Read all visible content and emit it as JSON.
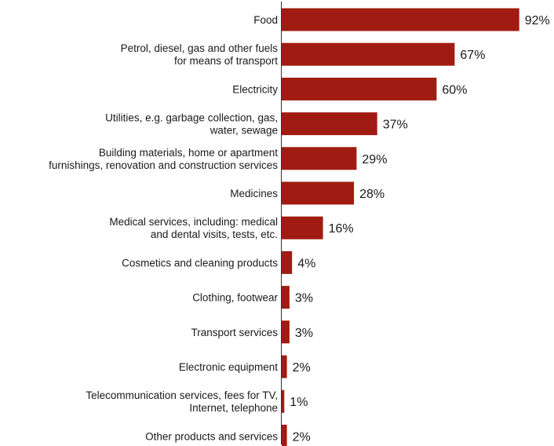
{
  "chart_data": {
    "type": "bar",
    "orientation": "horizontal",
    "categories": [
      "Food",
      "Petrol, diesel, gas and other fuels\nfor means of transport",
      "Electricity",
      "Utilities, e.g. garbage collection, gas,\nwater, sewage",
      "Building materials, home or apartment\nfurnishings, renovation and construction services",
      "Medicines",
      "Medical services, including: medical\nand dental visits, tests, etc.",
      "Cosmetics and cleaning products",
      "Clothing, footwear",
      "Transport services",
      "Electronic equipment",
      "Telecommunication services, fees for TV,\nInternet, telephone",
      "Other products and services"
    ],
    "values": [
      92,
      67,
      60,
      37,
      29,
      28,
      16,
      4,
      3,
      3,
      2,
      1,
      2
    ],
    "value_labels": [
      "92%",
      "67%",
      "60%",
      "37%",
      "29%",
      "28%",
      "16%",
      "4%",
      "3%",
      "3%",
      "2%",
      "1%",
      "2%"
    ],
    "unit": "%",
    "xlim": [
      0,
      100
    ],
    "bar_color": "#a01c12",
    "axis_line_color": "#333333",
    "grid": false,
    "legend": "none"
  }
}
